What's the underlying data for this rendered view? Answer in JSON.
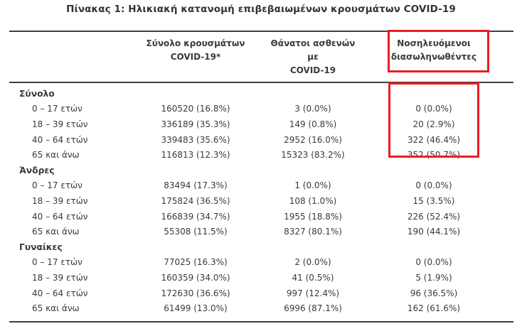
{
  "title": "Πίνακας 1: Ηλικιακή κατανομή επιβεβαιωμένων κρουσμάτων COVID-19",
  "colors": {
    "highlight_red": "#ed1c24",
    "text": "#3a3a3a",
    "rule": "#3f3f3f",
    "background": "#ffffff"
  },
  "table": {
    "col_headers": [
      {
        "line1": "Σύνολο κρουσμάτων",
        "line2": "COVID-19*"
      },
      {
        "line1": "Θάνατοι ασθενών με",
        "line2": "COVID-19"
      },
      {
        "line1": "Νοσηλευόμενοι",
        "line2": "διασωληνωθέντες",
        "highlighted": true
      }
    ],
    "sections": [
      {
        "label": "Σύνολο",
        "rows": [
          {
            "age": "0 – 17 ετών",
            "cases": "160520 (16.8%)",
            "deaths": "3 (0.0%)",
            "intubated": "0 (0.0%)"
          },
          {
            "age": "18 – 39 ετών",
            "cases": "336189 (35.3%)",
            "deaths": "149 (0.8%)",
            "intubated": "20 (2.9%)"
          },
          {
            "age": "40 – 64 ετών",
            "cases": "339483 (35.6%)",
            "deaths": "2952 (16.0%)",
            "intubated": "322 (46.4%)"
          },
          {
            "age": "65 και άνω",
            "cases": "116813 (12.3%)",
            "deaths": "15323 (83.2%)",
            "intubated": "352 (50.7%)"
          }
        ]
      },
      {
        "label": "Άνδρες",
        "rows": [
          {
            "age": "0 – 17 ετών",
            "cases": "83494 (17.3%)",
            "deaths": "1 (0.0%)",
            "intubated": "0 (0.0%)"
          },
          {
            "age": "18 – 39 ετών",
            "cases": "175824 (36.5%)",
            "deaths": "108 (1.0%)",
            "intubated": "15 (3.5%)"
          },
          {
            "age": "40 – 64 ετών",
            "cases": "166839 (34.7%)",
            "deaths": "1955 (18.8%)",
            "intubated": "226 (52.4%)"
          },
          {
            "age": "65 και άνω",
            "cases": "55308 (11.5%)",
            "deaths": "8327 (80.1%)",
            "intubated": "190 (44.1%)"
          }
        ]
      },
      {
        "label": "Γυναίκες",
        "rows": [
          {
            "age": "0 – 17 ετών",
            "cases": "77025 (16.3%)",
            "deaths": "2 (0.0%)",
            "intubated": "0 (0.0%)"
          },
          {
            "age": "18 – 39 ετών",
            "cases": "160359 (34.0%)",
            "deaths": "41 (0.5%)",
            "intubated": "5 (1.9%)"
          },
          {
            "age": "40 – 64 ετών",
            "cases": "172630 (36.6%)",
            "deaths": "997 (12.4%)",
            "intubated": "96 (36.5%)"
          },
          {
            "age": "65 και άνω",
            "cases": "61499 (13.0%)",
            "deaths": "6996 (87.1%)",
            "intubated": "162 (61.6%)"
          }
        ]
      }
    ]
  }
}
